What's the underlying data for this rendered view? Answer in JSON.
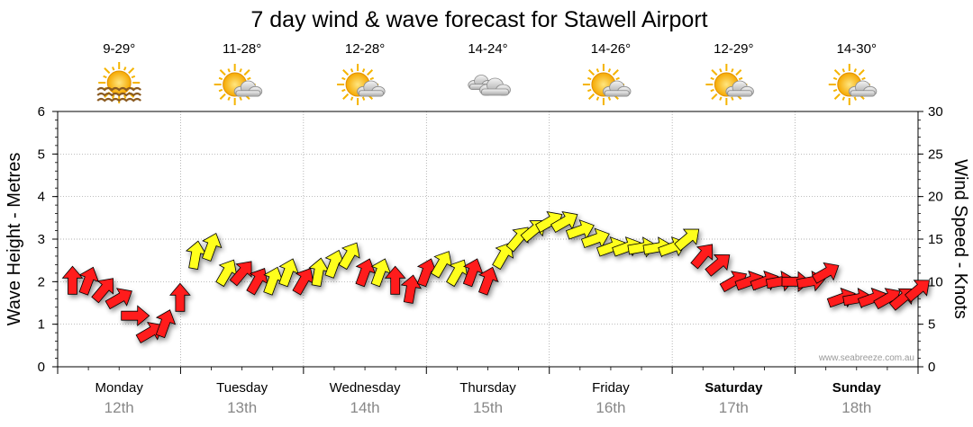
{
  "chart_data": {
    "type": "line",
    "title": "7 day wind & wave forecast for Stawell Airport",
    "ylabel_left": "Wave Height - Metres",
    "ylabel_right": "Wind Speed - Knots",
    "ylim_left": [
      0,
      6
    ],
    "ylim_right": [
      0,
      30
    ],
    "yticks_left": [
      "0",
      "1",
      "2",
      "3",
      "4",
      "5",
      "6"
    ],
    "yticks_right": [
      "0",
      "5",
      "10",
      "15",
      "20",
      "25",
      "30"
    ],
    "grid": true,
    "watermark": "www.seabreeze.com.au",
    "days": [
      {
        "name": "Monday",
        "date": "12th",
        "temp": "9-29°",
        "icon": "sun-haze-icon",
        "bold": false
      },
      {
        "name": "Tuesday",
        "date": "13th",
        "temp": "11-28°",
        "icon": "sun-cloud-icon",
        "bold": false
      },
      {
        "name": "Wednesday",
        "date": "14th",
        "temp": "12-28°",
        "icon": "sun-cloud-icon",
        "bold": false
      },
      {
        "name": "Thursday",
        "date": "15th",
        "temp": "14-24°",
        "icon": "cloud-icon",
        "bold": false
      },
      {
        "name": "Friday",
        "date": "16th",
        "temp": "14-26°",
        "icon": "sun-cloud-icon",
        "bold": false
      },
      {
        "name": "Saturday",
        "date": "17th",
        "temp": "12-29°",
        "icon": "sun-cloud-icon",
        "bold": true
      },
      {
        "name": "Sunday",
        "date": "18th",
        "temp": "14-30°",
        "icon": "sun-cloud-icon",
        "bold": true
      }
    ],
    "colors": {
      "strong": "#ff1a1a",
      "moderate": "#ffff1a",
      "outline": "#000000",
      "grid": "#999999"
    },
    "series": [
      {
        "unit": "knots",
        "time_hours": [
          0,
          3,
          6,
          9,
          12,
          15,
          18,
          21,
          24,
          27,
          30,
          33,
          36,
          39,
          42,
          45,
          48,
          51,
          54,
          57,
          60,
          63,
          66,
          69,
          72,
          75,
          78,
          81,
          84,
          87,
          90,
          93,
          96,
          99,
          102,
          105,
          108,
          111,
          114,
          117,
          120,
          123,
          126,
          129,
          132,
          135,
          138,
          141,
          144,
          147,
          150,
          153,
          156,
          159,
          162,
          165
        ],
        "speed": [
          10,
          10,
          9,
          8,
          6,
          4,
          5,
          8,
          13,
          14,
          11,
          11,
          10,
          10,
          11,
          10,
          11,
          12,
          13,
          11,
          11,
          10,
          9,
          11,
          12,
          11,
          11,
          10,
          13,
          15,
          16,
          17,
          17,
          16,
          15,
          14,
          14,
          14,
          14,
          14,
          15,
          13,
          12,
          10,
          10,
          10,
          10,
          10,
          10,
          11,
          8,
          8,
          8,
          8,
          8,
          9
        ],
        "color": [
          "red",
          "red",
          "red",
          "red",
          "red",
          "red",
          "red",
          "red",
          "yellow",
          "yellow",
          "yellow",
          "red",
          "red",
          "yellow",
          "yellow",
          "red",
          "yellow",
          "yellow",
          "yellow",
          "red",
          "yellow",
          "red",
          "red",
          "red",
          "yellow",
          "yellow",
          "red",
          "red",
          "yellow",
          "yellow",
          "yellow",
          "yellow",
          "yellow",
          "yellow",
          "yellow",
          "yellow",
          "yellow",
          "yellow",
          "yellow",
          "yellow",
          "yellow",
          "red",
          "red",
          "red",
          "red",
          "red",
          "red",
          "red",
          "red",
          "red",
          "red",
          "red",
          "red",
          "red",
          "red",
          "red"
        ],
        "toward_deg": [
          0,
          20,
          40,
          60,
          90,
          60,
          20,
          0,
          10,
          20,
          30,
          40,
          30,
          20,
          20,
          30,
          10,
          20,
          30,
          20,
          20,
          0,
          10,
          20,
          30,
          30,
          20,
          20,
          30,
          40,
          50,
          60,
          60,
          70,
          70,
          70,
          70,
          80,
          80,
          70,
          50,
          40,
          50,
          60,
          70,
          70,
          80,
          90,
          80,
          60,
          70,
          80,
          70,
          60,
          50,
          50
        ]
      }
    ]
  }
}
